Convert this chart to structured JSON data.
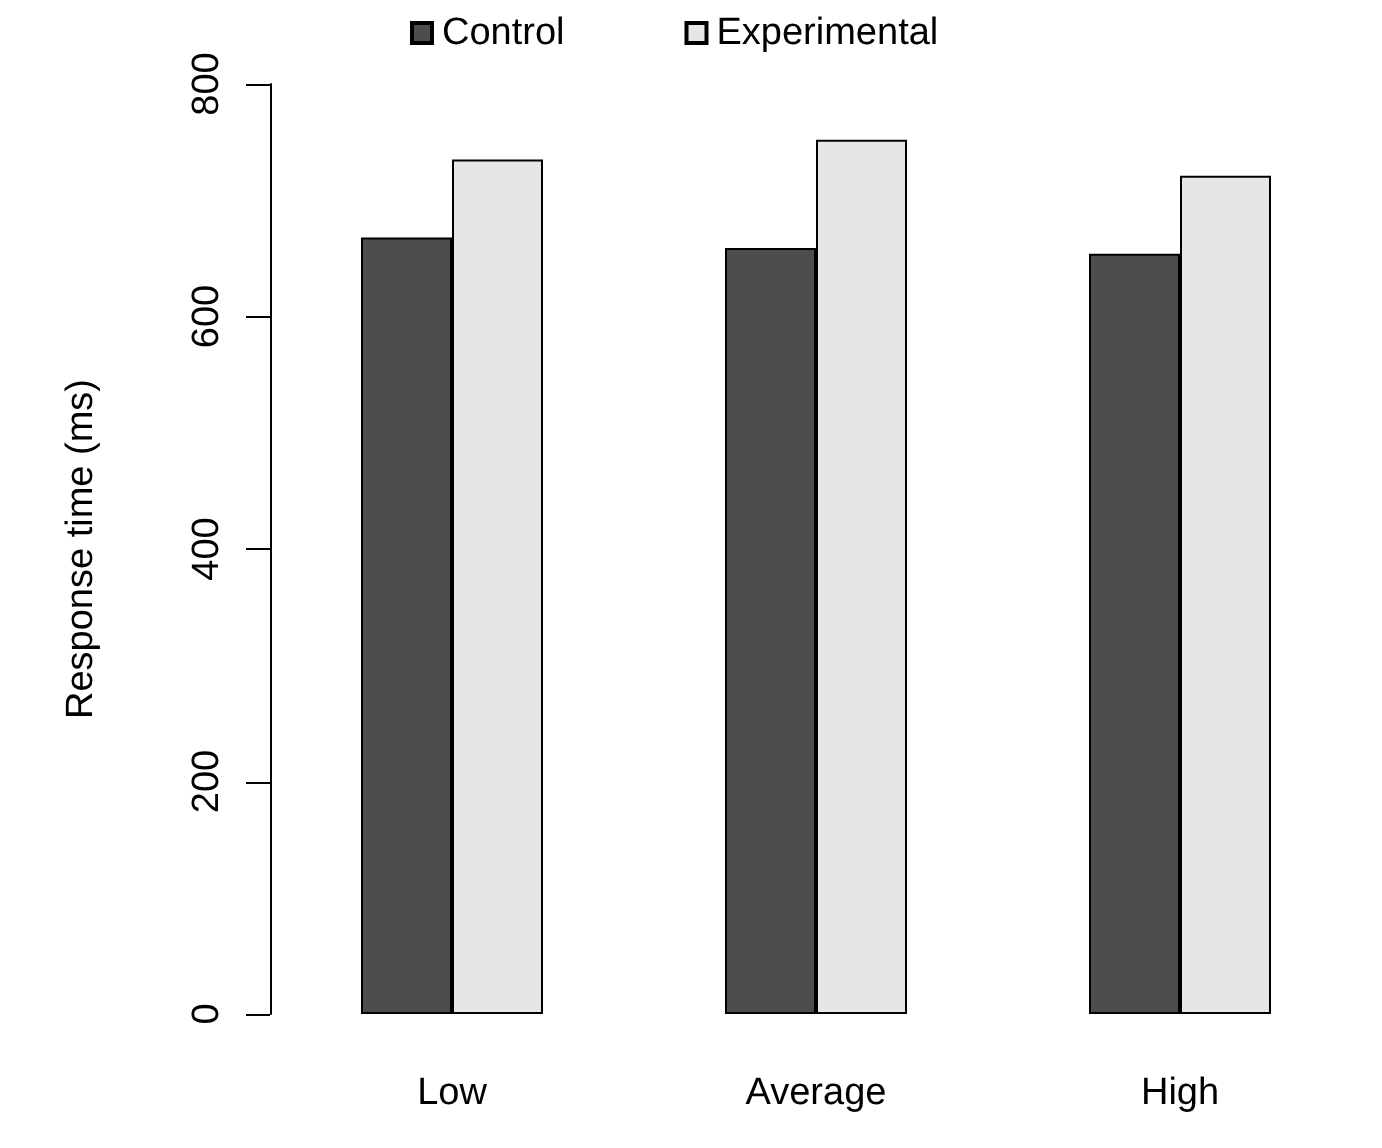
{
  "chart_data": {
    "type": "bar",
    "ylabel": "Response time (ms)",
    "categories": [
      "Low",
      "Average",
      "High"
    ],
    "series": [
      {
        "name": "Control",
        "color": "#4d4d4d",
        "values": [
          668,
          659,
          654
        ]
      },
      {
        "name": "Experimental",
        "color": "#e6e6e6",
        "values": [
          735,
          752,
          721
        ]
      }
    ],
    "ylim": [
      0,
      800
    ],
    "yticks": [
      0,
      200,
      400,
      600,
      800
    ],
    "grid": false,
    "legend": "top"
  }
}
